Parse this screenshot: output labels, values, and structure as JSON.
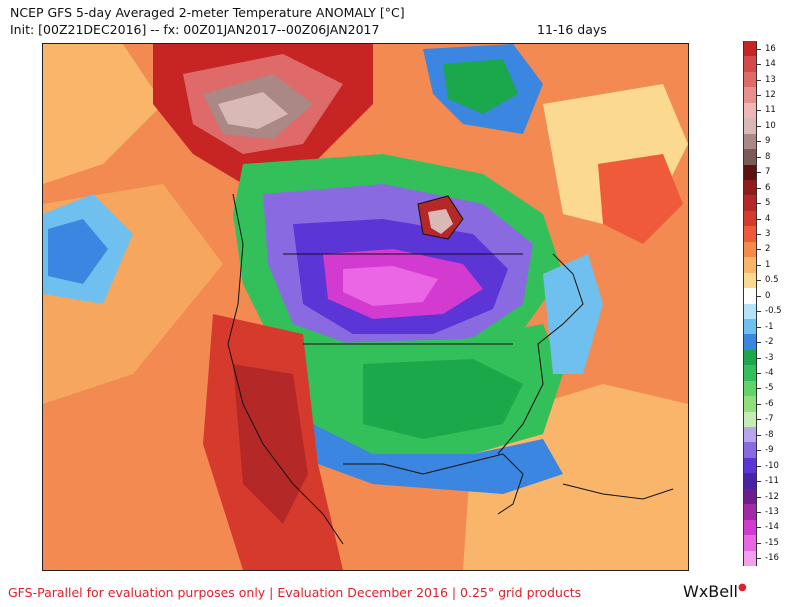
{
  "header": {
    "title": "NCEP GFS 5-day Averaged 2-meter Temperature ANOMALY [°C]",
    "init_line": "Init: [00Z21DEC2016] -- fx: 00Z01JAN2017--00Z06JAN2017",
    "range": "11-16 days"
  },
  "colorbar": {
    "levels": [
      {
        "label": "16",
        "color": "#c72424"
      },
      {
        "label": "14",
        "color": "#d44a4a"
      },
      {
        "label": "13",
        "color": "#de6a6a"
      },
      {
        "label": "12",
        "color": "#e88f8f"
      },
      {
        "label": "11",
        "color": "#f1b7b7"
      },
      {
        "label": "10",
        "color": "#d9b9b5"
      },
      {
        "label": "9",
        "color": "#a98886"
      },
      {
        "label": "8",
        "color": "#7c5a58"
      },
      {
        "label": "7",
        "color": "#5a1212"
      },
      {
        "label": "6",
        "color": "#8f1d1d"
      },
      {
        "label": "5",
        "color": "#b52828"
      },
      {
        "label": "4",
        "color": "#d63a2c"
      },
      {
        "label": "3",
        "color": "#ee5a3a"
      },
      {
        "label": "2",
        "color": "#f58a4a"
      },
      {
        "label": "1",
        "color": "#f9b56a"
      },
      {
        "label": "0.5",
        "color": "#fbd990"
      },
      {
        "label": "0",
        "color": "#ffffff"
      },
      {
        "label": "-0.5",
        "color": "#b4e3f5"
      },
      {
        "label": "-1",
        "color": "#6fc0ee"
      },
      {
        "label": "-2",
        "color": "#3a86e0"
      },
      {
        "label": "-3",
        "color": "#1aa84a"
      },
      {
        "label": "-4",
        "color": "#33c05a"
      },
      {
        "label": "-5",
        "color": "#5fd46a"
      },
      {
        "label": "-6",
        "color": "#8fe07a"
      },
      {
        "label": "-7",
        "color": "#c4ecb5"
      },
      {
        "label": "-8",
        "color": "#b9a6ea"
      },
      {
        "label": "-9",
        "color": "#8a6ae0"
      },
      {
        "label": "-10",
        "color": "#5b35d6"
      },
      {
        "label": "-11",
        "color": "#4a22a6"
      },
      {
        "label": "-12",
        "color": "#6d1f8c"
      },
      {
        "label": "-13",
        "color": "#a22aa8"
      },
      {
        "label": "-14",
        "color": "#d33ad0"
      },
      {
        "label": "-15",
        "color": "#ea66e4"
      },
      {
        "label": "-16",
        "color": "#f3a0ef"
      }
    ]
  },
  "footer": {
    "text": "GFS-Parallel for evaluation purposes only | Evaluation December 2016 | 0.25° grid products",
    "brand": "WxBell"
  }
}
